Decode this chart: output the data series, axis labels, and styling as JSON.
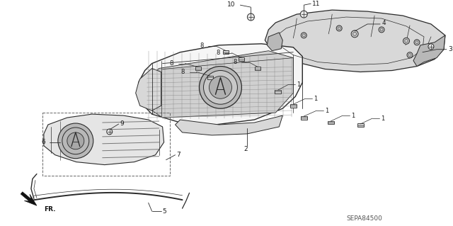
{
  "bg_color": "#ffffff",
  "diagram_code": "SEPA84500",
  "line_color": "#2a2a2a",
  "text_color": "#1a1a1a",
  "light_fill": "#d8d8d8",
  "mid_fill": "#b8b8b8",
  "dark_fill": "#888888"
}
